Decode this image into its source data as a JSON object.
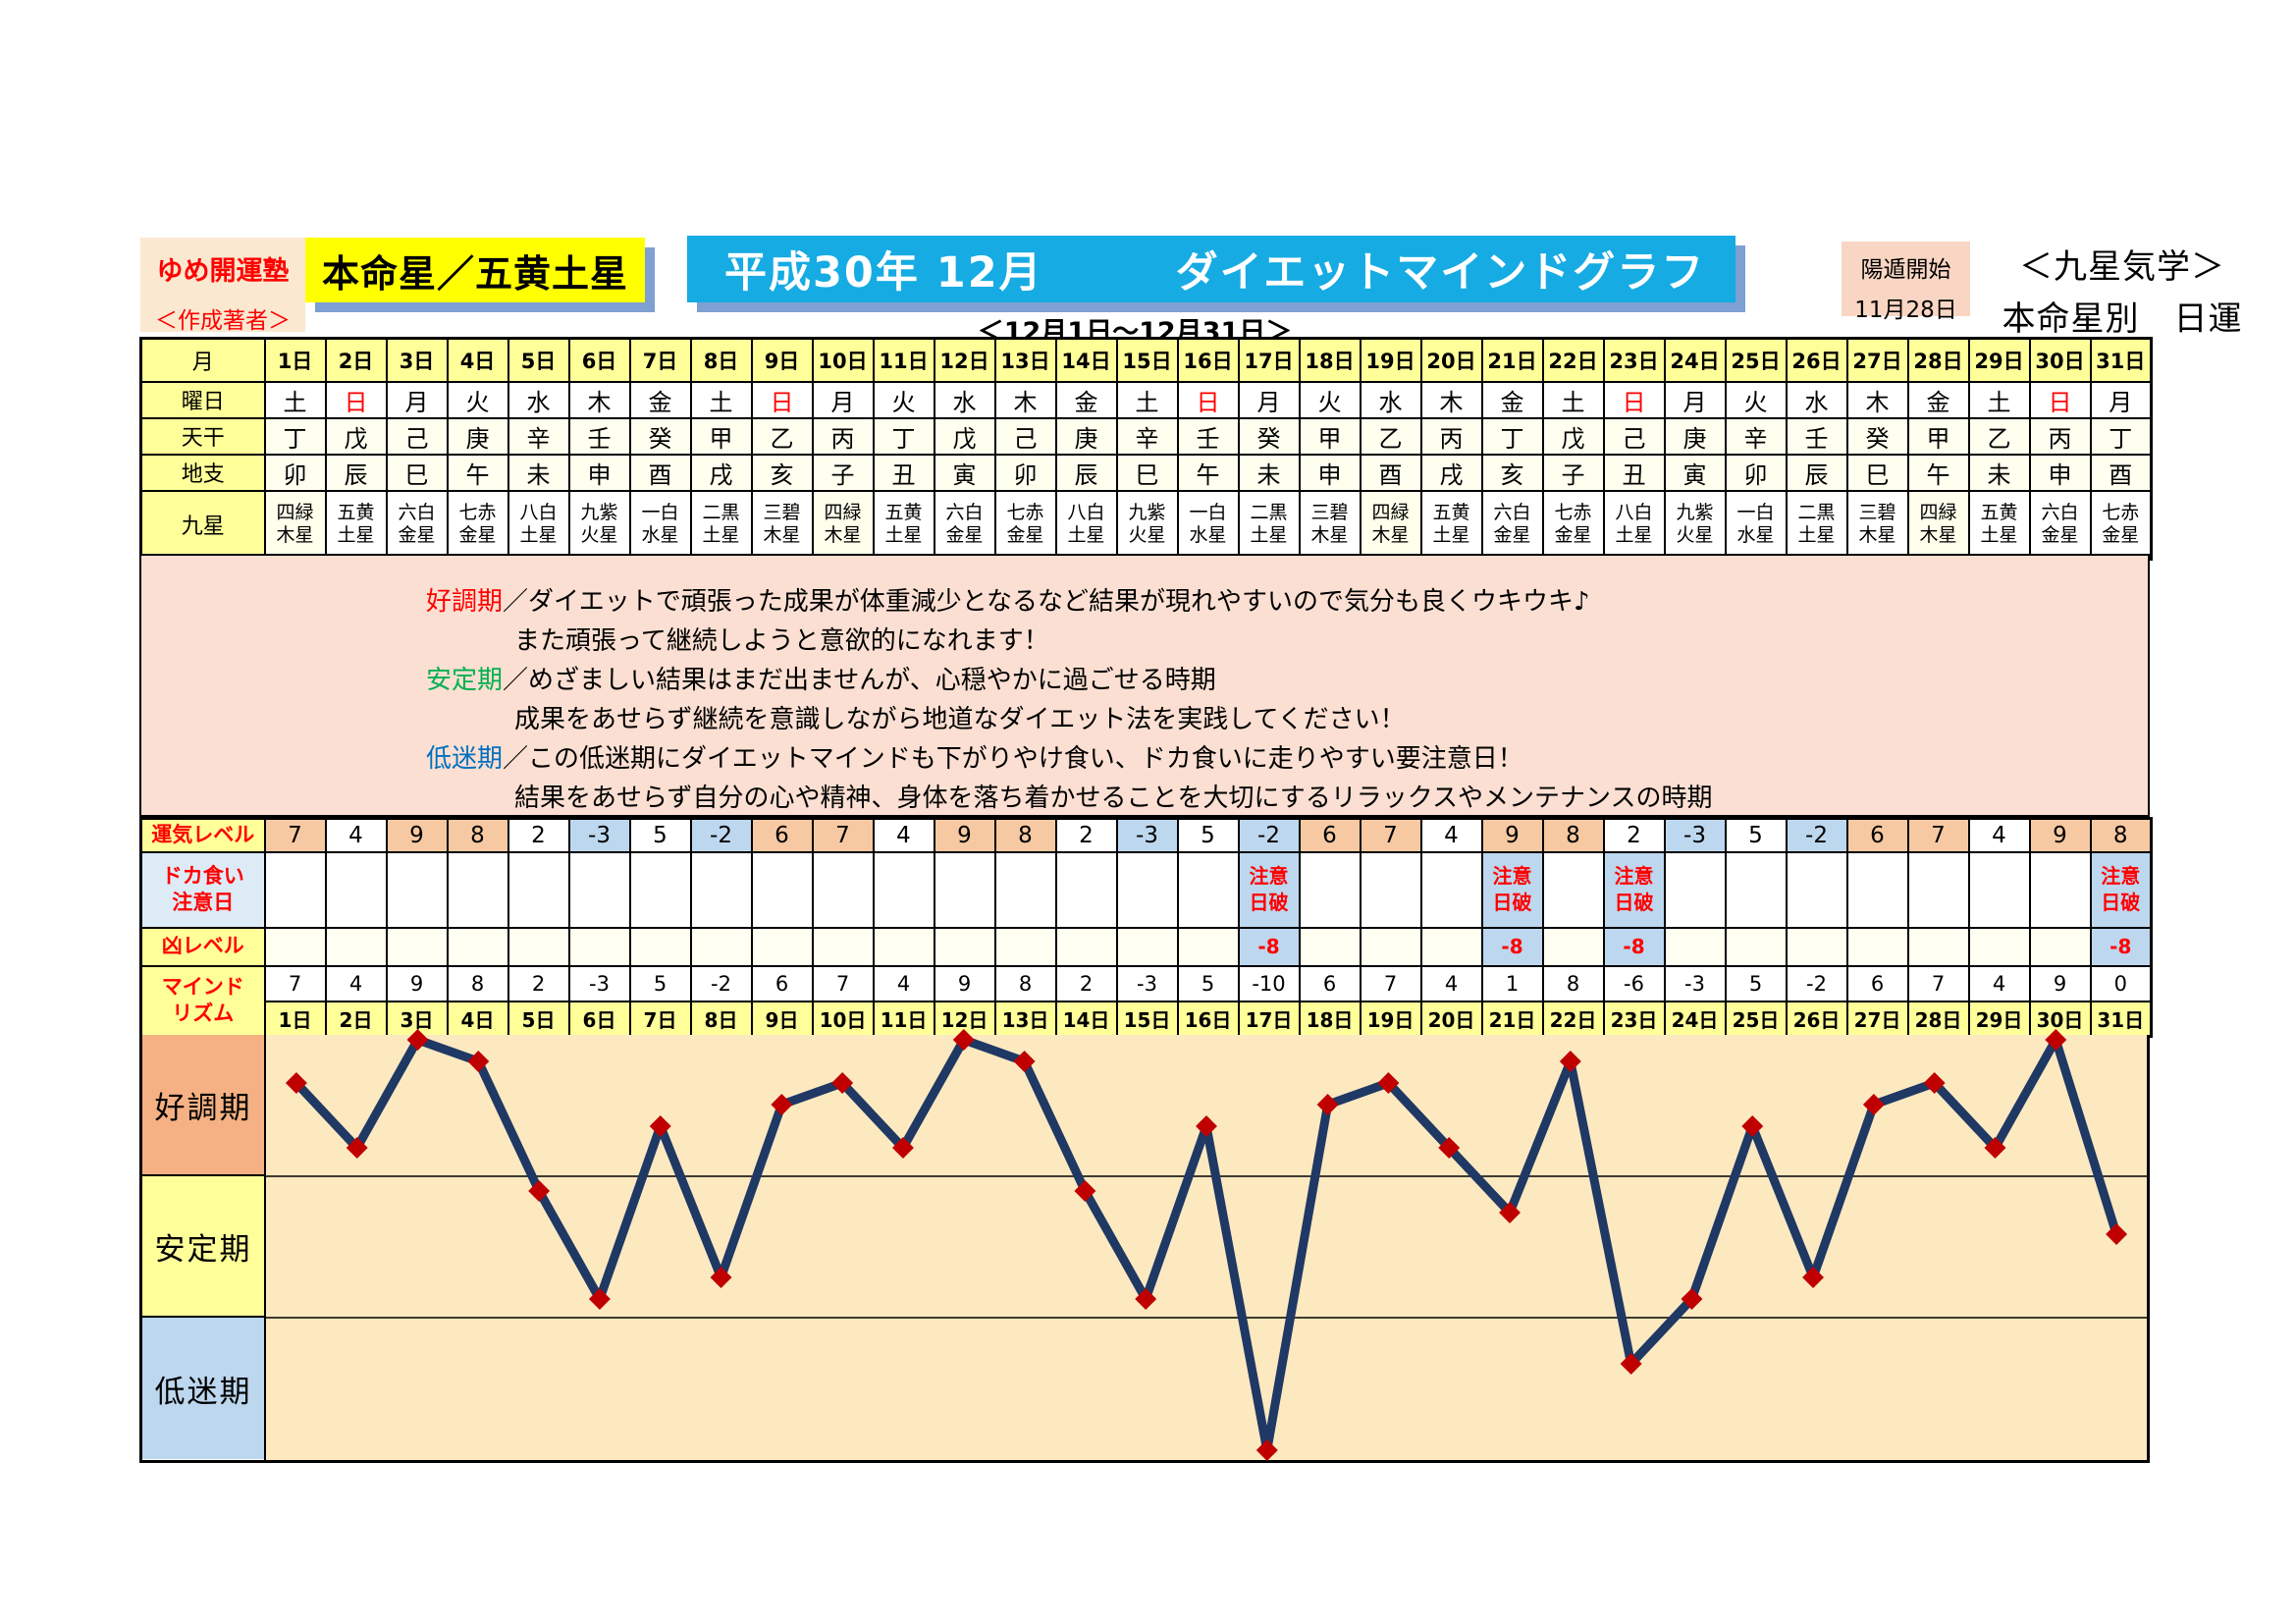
{
  "header": {
    "brand_line1": "ゆめ開運塾",
    "brand_line2": "＜作成著者＞",
    "honmeisei": "本命星／五黄土星",
    "title": "平成30年 12月　　　ダイエットマインドグラフ",
    "period_subtitle": "＜12月1日～12月31日＞",
    "youton_line1": "陽遁開始",
    "youton_line2": "11月28日",
    "kigaku_line1": "＜九星気学＞",
    "kigaku_line2": "本命星別　日運"
  },
  "calendar": {
    "row_labels": {
      "month": "月",
      "weekday": "曜日",
      "tenkan": "天干",
      "chishi": "地支",
      "kyusei": "九星"
    },
    "days": [
      "1日",
      "2日",
      "3日",
      "4日",
      "5日",
      "6日",
      "7日",
      "8日",
      "9日",
      "10日",
      "11日",
      "12日",
      "13日",
      "14日",
      "15日",
      "16日",
      "17日",
      "18日",
      "19日",
      "20日",
      "21日",
      "22日",
      "23日",
      "24日",
      "25日",
      "26日",
      "27日",
      "28日",
      "29日",
      "30日",
      "31日"
    ],
    "weekdays": [
      "土",
      "日",
      "月",
      "火",
      "水",
      "木",
      "金",
      "土",
      "日",
      "月",
      "火",
      "水",
      "木",
      "金",
      "土",
      "日",
      "月",
      "火",
      "水",
      "木",
      "金",
      "土",
      "日",
      "月",
      "火",
      "水",
      "木",
      "金",
      "土",
      "日",
      "月"
    ],
    "sundays": [
      2,
      9,
      16,
      23,
      30
    ],
    "tenkan": [
      "丁",
      "戊",
      "己",
      "庚",
      "辛",
      "壬",
      "癸",
      "甲",
      "乙",
      "丙",
      "丁",
      "戊",
      "己",
      "庚",
      "辛",
      "壬",
      "癸",
      "甲",
      "乙",
      "丙",
      "丁",
      "戊",
      "己",
      "庚",
      "辛",
      "壬",
      "癸",
      "甲",
      "乙",
      "丙",
      "丁"
    ],
    "chishi": [
      "卯",
      "辰",
      "巳",
      "午",
      "未",
      "申",
      "酉",
      "戌",
      "亥",
      "子",
      "丑",
      "寅",
      "卯",
      "辰",
      "巳",
      "午",
      "未",
      "申",
      "酉",
      "戌",
      "亥",
      "子",
      "丑",
      "寅",
      "卯",
      "辰",
      "巳",
      "午",
      "未",
      "申",
      "酉"
    ],
    "kyusei": [
      "四緑\n木星",
      "五黄\n土星",
      "六白\n金星",
      "七赤\n金星",
      "八白\n土星",
      "九紫\n火星",
      "一白\n水星",
      "二黒\n土星",
      "三碧\n木星",
      "四緑\n木星",
      "五黄\n土星",
      "六白\n金星",
      "七赤\n金星",
      "八白\n土星",
      "九紫\n火星",
      "一白\n水星",
      "二黒\n土星",
      "三碧\n木星",
      "四緑\n木星",
      "五黄\n土星",
      "六白\n金星",
      "七赤\n金星",
      "八白\n土星",
      "九紫\n火星",
      "一白\n水星",
      "二黒\n土星",
      "三碧\n木星",
      "四緑\n木星",
      "五黄\n土星",
      "六白\n金星",
      "七赤\n金星"
    ],
    "kyusei_highlight": [
      1,
      10,
      19,
      28
    ]
  },
  "legend": {
    "separator": "／",
    "lines": [
      {
        "label": "好調期",
        "text1": "ダイエットで頑張った成果が体重減少となるなど結果が現れやすいので気分も良くウキウキ♪",
        "text2": "また頑張って継続しようと意欲的になれます！"
      },
      {
        "label": "安定期",
        "text1": "めざましい結果はまだ出ませんが、心穏やかに過ごせる時期",
        "text2": "成果をあせらず継続を意識しながら地道なダイエット法を実践してください！"
      },
      {
        "label": "低迷期",
        "text1": "この低迷期にダイエットマインドも下がりやけ食い、ドカ食いに走りやすい要注意日！",
        "text2": "結果をあせらず自分の心や精神、身体を落ち着かせることを大切にするリラックスやメンテナンスの時期"
      }
    ]
  },
  "levels": {
    "unki_label": "運気レベル",
    "unki": [
      7,
      4,
      9,
      8,
      2,
      -3,
      5,
      -2,
      6,
      7,
      4,
      9,
      8,
      2,
      -3,
      5,
      -2,
      6,
      7,
      4,
      9,
      8,
      2,
      -3,
      5,
      -2,
      6,
      7,
      4,
      9,
      8
    ],
    "dokagui_label": "ドカ食い\n注意日",
    "caution_days": [
      17,
      21,
      23,
      31
    ],
    "caution_text": "注意\n日破",
    "kyo_label": "凶レベル",
    "kyo_value": "-8",
    "mind_label": "マインド\nリズム",
    "mind": [
      7,
      4,
      9,
      8,
      2,
      -3,
      5,
      -2,
      6,
      7,
      4,
      9,
      8,
      2,
      -3,
      5,
      -10,
      6,
      7,
      4,
      1,
      8,
      -6,
      -3,
      5,
      -2,
      6,
      7,
      4,
      9,
      0
    ]
  },
  "chart_data": {
    "type": "line",
    "x": [
      1,
      2,
      3,
      4,
      5,
      6,
      7,
      8,
      9,
      10,
      11,
      12,
      13,
      14,
      15,
      16,
      17,
      18,
      19,
      20,
      21,
      22,
      23,
      24,
      25,
      26,
      27,
      28,
      29,
      30,
      31
    ],
    "x_labels": [
      "1日",
      "2日",
      "3日",
      "4日",
      "5日",
      "6日",
      "7日",
      "8日",
      "9日",
      "10日",
      "11日",
      "12日",
      "13日",
      "14日",
      "15日",
      "16日",
      "17日",
      "18日",
      "19日",
      "20日",
      "21日",
      "22日",
      "23日",
      "24日",
      "25日",
      "26日",
      "27日",
      "28日",
      "29日",
      "30日",
      "31日"
    ],
    "series": [
      {
        "name": "マインドリズム",
        "values": [
          7,
          4,
          9,
          8,
          2,
          -3,
          5,
          -2,
          6,
          7,
          4,
          9,
          8,
          2,
          -3,
          5,
          -10,
          6,
          7,
          4,
          1,
          8,
          -6,
          -3,
          5,
          -2,
          6,
          7,
          4,
          9,
          0
        ]
      }
    ],
    "ylim": [
      -10.5,
      9.3
    ],
    "zones": [
      {
        "label": "好調期",
        "range": [
          2.7,
          9.3
        ],
        "color": "#F5B183"
      },
      {
        "label": "安定期",
        "range": [
          -3.9,
          2.7
        ],
        "color": "#FFFF99"
      },
      {
        "label": "低迷期",
        "range": [
          -10.5,
          -3.9
        ],
        "color": "#BDD7EE"
      }
    ],
    "grid": false,
    "legend_position": "none",
    "line_color": "#1F3864",
    "marker": {
      "shape": "diamond",
      "color": "#C00000"
    },
    "plot_background": "#FCE9C0"
  },
  "colors": {
    "title_bar": "#16ABE3",
    "honmei_bg": "#FFFF00",
    "shadow": "#7EA0D2",
    "label_yellow": "#FFFF99",
    "level_positive": "#F7C9A2",
    "level_negative": "#BDD7EE",
    "legend_bg": "#FBDFD2",
    "good_red": "#FF0000",
    "stable_green": "#00B050",
    "slump_blue": "#0070C0"
  }
}
